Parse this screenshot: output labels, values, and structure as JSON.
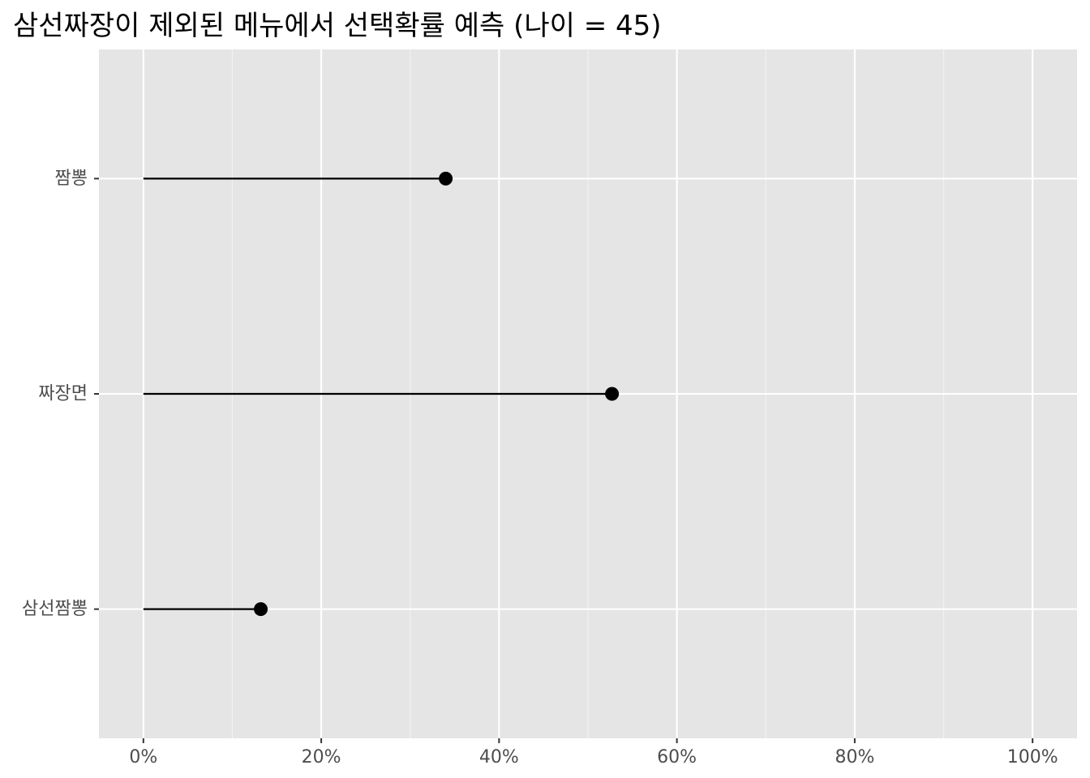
{
  "chart_data": {
    "type": "lollipop",
    "title": "삼선짜장이 제외된 메뉴에서 선택확률 예측 (나이 = 45)",
    "xlabel": "",
    "ylabel": "",
    "categories": [
      "짬뽕",
      "짜장면",
      "삼선짬뽕"
    ],
    "values": [
      0.34,
      0.527,
      0.132
    ],
    "xlim": [
      -0.05,
      1.05
    ],
    "x_ticks": [
      0,
      0.2,
      0.4,
      0.6,
      0.8,
      1.0
    ],
    "x_tick_labels": [
      "0%",
      "20%",
      "40%",
      "60%",
      "80%",
      "100%"
    ],
    "x_minor_ticks": [
      0.1,
      0.3,
      0.5,
      0.7,
      0.9
    ],
    "grid": true,
    "legend": "none"
  },
  "colors": {
    "panel_background": "#e5e5e5",
    "grid_major": "#ffffff",
    "grid_minor": "#f2f2f2",
    "marker": "#000000",
    "tick_text": "#4d4d4d",
    "tick_mark": "#333333"
  }
}
